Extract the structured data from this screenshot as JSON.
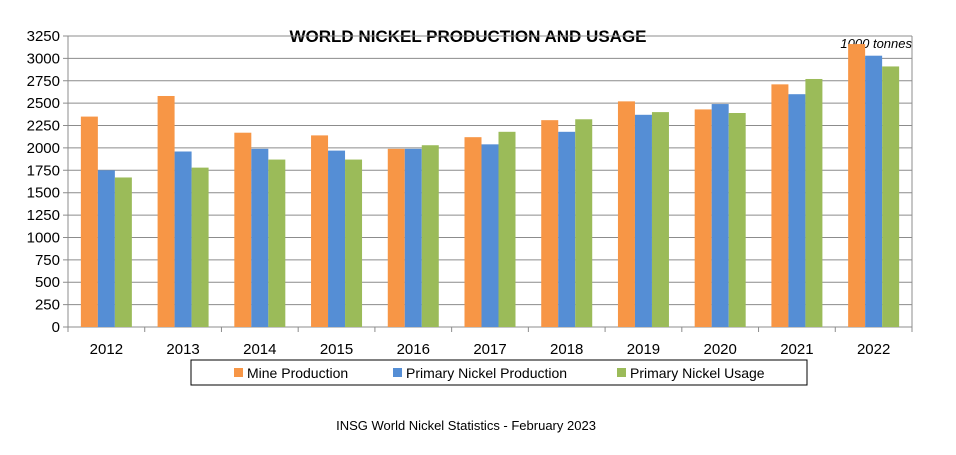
{
  "chart_data": {
    "type": "bar",
    "title": "WORLD NICKEL PRODUCTION AND USAGE",
    "unit_label": "1000 tonnes",
    "source": "INSG World Nickel Statistics - February 2023",
    "categories": [
      "2012",
      "2013",
      "2014",
      "2015",
      "2016",
      "2017",
      "2018",
      "2019",
      "2020",
      "2021",
      "2022"
    ],
    "ylim": [
      0,
      3250
    ],
    "yticks": [
      0,
      250,
      500,
      750,
      1000,
      1250,
      1500,
      1750,
      2000,
      2250,
      2500,
      2750,
      3000,
      3250
    ],
    "grid": true,
    "legend_placement": "bottom",
    "series": [
      {
        "name": "Mine Production",
        "color": "#f79646",
        "values": [
          2350,
          2580,
          2170,
          2140,
          1990,
          2120,
          2310,
          2520,
          2430,
          2710,
          3160
        ]
      },
      {
        "name": "Primary Nickel Production",
        "color": "#558ed5",
        "values": [
          1750,
          1960,
          1990,
          1970,
          1990,
          2040,
          2180,
          2370,
          2490,
          2600,
          3030
        ]
      },
      {
        "name": "Primary Nickel Usage",
        "color": "#9bbb59",
        "values": [
          1670,
          1780,
          1870,
          1870,
          2030,
          2180,
          2320,
          2400,
          2390,
          2770,
          2910
        ]
      }
    ]
  }
}
